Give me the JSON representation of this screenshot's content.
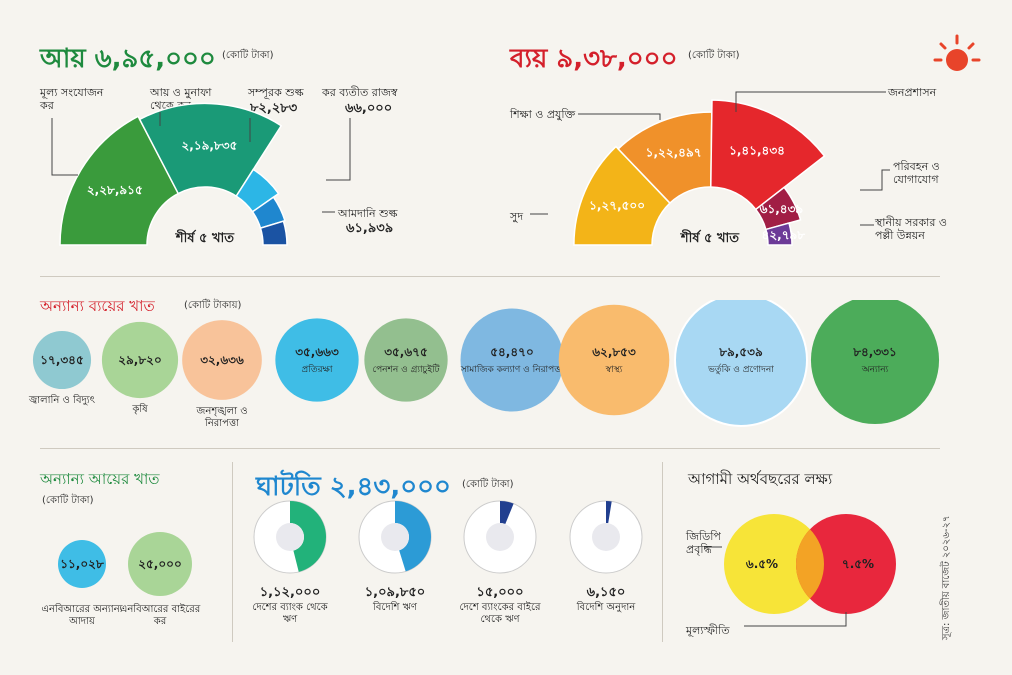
{
  "colors": {
    "income_title": "#1e8a3e",
    "expense_title": "#d4202b",
    "sun": "#e8442a"
  },
  "income": {
    "title": "আয় ৬,৯৫,০০০",
    "unit": "(কোটি টাকা)",
    "center_label": "শীর্ষ ৫ খাত"
  },
  "expense": {
    "title": "ব্যয় ৯,৩৮,০০০",
    "unit": "(কোটি টাকা)",
    "center_label": "শীর্ষ ৫ খাত"
  },
  "other_exp": {
    "title": "অন্যান্য ব্যয়ের খাত",
    "unit": "(কোটি টাকায়)"
  },
  "other_inc": {
    "title": "অন্যান্য আয়ের খাত",
    "unit": "(কোটি টাকা)"
  },
  "deficit": {
    "title": "ঘাটতি ২,৪৩,০০০",
    "unit": "(কোটি টাকা)"
  },
  "target": {
    "title": "আগামী অর্থবছরের লক্ষ্য"
  },
  "source": "সূত্র: জাতীয় বাজেট ২০২৬-২৭",
  "chart_data": [
    {
      "type": "pie",
      "title": "আয় ৬,৯৫,০০০",
      "categories": [
        "মূল্য সংযোজন কর",
        "আয় ও মুনাফা থেকে কর",
        "সম্পূরক শুল্ক",
        "কর ব্যতীত রাজস্ব",
        "আমদানি শুল্ক"
      ],
      "labels": [
        "২,২৮,৯১৫",
        "২,১৯,৮৩৫",
        "৮২,২৮৩",
        "৬৬,০০০",
        "৬১,৯৩৯"
      ],
      "values": [
        228915,
        219835,
        82283,
        66000,
        61939
      ],
      "colors": [
        "#3a9b3c",
        "#1a9a77",
        "#2cb6e6",
        "#1f87cf",
        "#1b53a3"
      ]
    },
    {
      "type": "pie",
      "title": "ব্যয় ৯,৩৮,০০০",
      "categories": [
        "সুদ",
        "শিক্ষা ও প্রযুক্তি",
        "জনপ্রশাসন",
        "পরিবহন ও যোগাযোগ",
        "স্থানীয় সরকার ও পল্লী উন্নয়ন"
      ],
      "labels": [
        "১,২৭,৫০০",
        "১,২২,৪৯৭",
        "১,৪১,৪৩৪",
        "৬১,৪৩৯",
        "৪২,৭৯৮"
      ],
      "values": [
        127500,
        122497,
        141434,
        61439,
        42798
      ],
      "colors": [
        "#f3b418",
        "#f0912a",
        "#e5272c",
        "#a11e45",
        "#6c3a97"
      ]
    },
    {
      "type": "scatter",
      "title": "অন্যান্য ব্যয়ের খাত",
      "categories": [
        "জ্বালানি ও বিদ্যুৎ",
        "কৃষি",
        "জনশৃঙ্খলা ও নিরাপত্তা",
        "প্রতিরক্ষা",
        "পেনশন ও গ্র্যাচুইটি",
        "সামাজিক কল্যাণ ও নিরাপত্তা",
        "স্বাস্থ্য",
        "ভর্তুকি ও প্রণোদনা",
        "অন্যান্য"
      ],
      "labels": [
        "১৭,৩৪৫",
        "২৯,৮২০",
        "৩২,৬৩৬",
        "৩৫,৬৬৩",
        "৩৫,৬৭৫",
        "৫৪,৪৭০",
        "৬২,৮৫৩",
        "৮৯,৫৩৯",
        "৮৪,৩৩১"
      ],
      "values": [
        17345,
        29820,
        32636,
        35663,
        35675,
        54470,
        62853,
        89539,
        84331
      ],
      "colors": [
        "#8fc9d1",
        "#a9d597",
        "#f8c39a",
        "#3fbde6",
        "#93bf8f",
        "#7fb8e1",
        "#f9bb6d",
        "#a8d8f3",
        "#4cac5a"
      ]
    },
    {
      "type": "scatter",
      "title": "অন্যান্য আয়ের খাত",
      "categories": [
        "এনবিআরের অন্যান্য আদায়",
        "এনবিআরের বাইরের কর"
      ],
      "labels": [
        "১১,০২৮",
        "২৫,০০০"
      ],
      "values": [
        11028,
        25000
      ],
      "colors": [
        "#3fbde6",
        "#a9d597"
      ]
    },
    {
      "type": "pie",
      "title": "ঘাটতি ২,৪৩,০০০",
      "categories": [
        "দেশের ব্যাংক থেকে ঋণ",
        "বিদেশি ঋণ",
        "দেশে ব্যাংকের বাইরে থেকে ঋণ",
        "বিদেশি অনুদান"
      ],
      "labels": [
        "১,১২,০০০",
        "১,০৯,৮৫০",
        "১৫,০০০",
        "৬,১৫০"
      ],
      "values": [
        112000,
        109850,
        15000,
        6150
      ],
      "total": 243000,
      "colors": [
        "#22b27a",
        "#2c9bd6",
        "#213f8f",
        "#213f8f"
      ]
    },
    {
      "type": "scatter",
      "title": "আগামী অর্থবছরের লক্ষ্য",
      "categories": [
        "জিডিপি প্রবৃদ্ধি",
        "মূল্যস্ফীতি"
      ],
      "labels": [
        "৬.৫%",
        "৭.৫%"
      ],
      "values": [
        6.5,
        7.5
      ],
      "colors": [
        "#f7e438",
        "#e8273d"
      ]
    }
  ]
}
